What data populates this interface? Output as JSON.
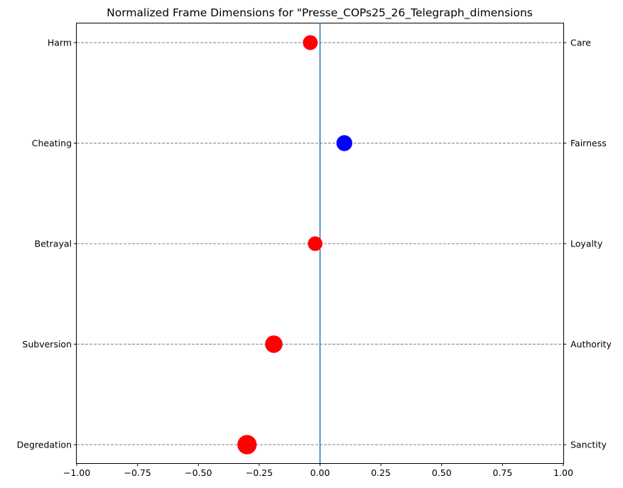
{
  "chart_data": {
    "type": "scatter",
    "title": "Normalized Frame Dimensions for \"Presse_COPs25_26_Telegraph_dimensions",
    "xlabel": "",
    "ylabel": "",
    "xlim": [
      -1.0,
      1.0
    ],
    "x_ticks": [
      "−1.00",
      "−0.75",
      "−0.50",
      "−0.25",
      "0.00",
      "0.25",
      "0.50",
      "0.75",
      "1.00"
    ],
    "x_tick_values": [
      -1.0,
      -0.75,
      -0.5,
      -0.25,
      0.0,
      0.25,
      0.5,
      0.75,
      1.0
    ],
    "left_labels": [
      "Harm",
      "Cheating",
      "Betrayal",
      "Subversion",
      "Degredation"
    ],
    "right_labels": [
      "Care",
      "Fairness",
      "Loyalty",
      "Authority",
      "Sanctity"
    ],
    "values": [
      -0.04,
      0.1,
      -0.02,
      -0.19,
      -0.3
    ],
    "point_colors": [
      "#ff0000",
      "#0000ff",
      "#ff0000",
      "#ff0000",
      "#ff0000"
    ],
    "grid": "dashed horizontal lines at each dimension",
    "zero_line_color": "#1f77b4"
  }
}
